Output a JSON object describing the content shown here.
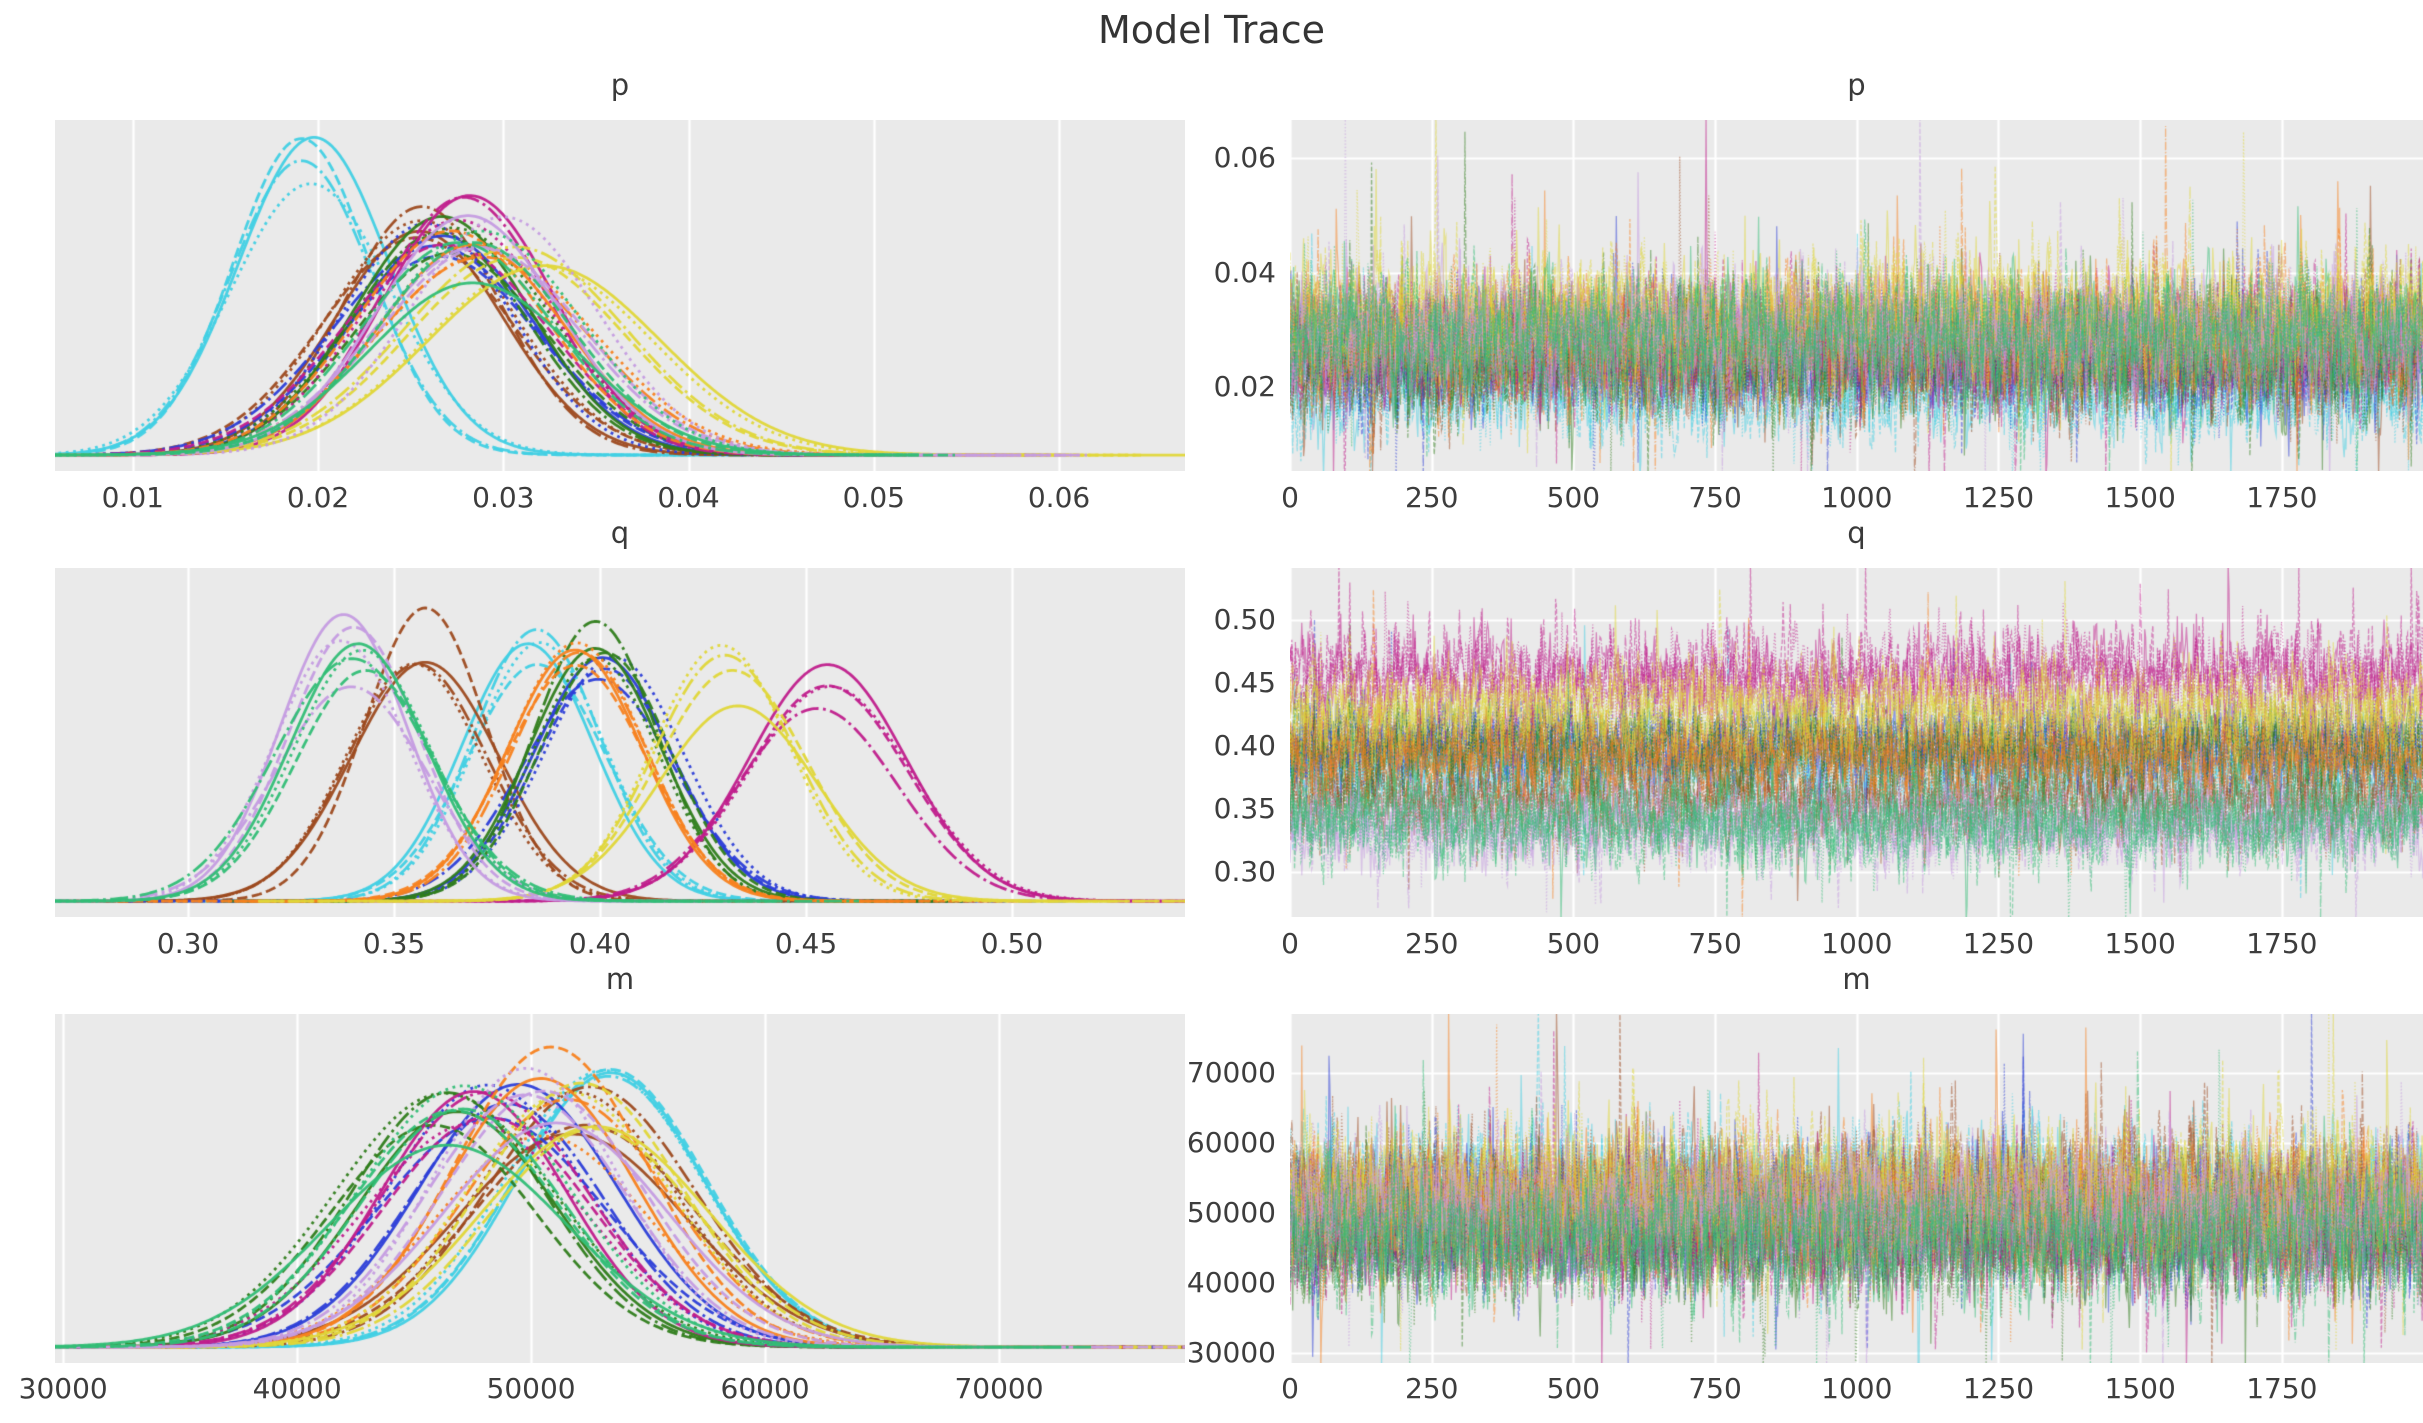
{
  "title": "Model Trace",
  "style": {
    "page_bg": "#ffffff",
    "plot_bg": "#eaeaea",
    "grid_color": "#ffffff",
    "text_color": "#3d3d3d",
    "title_color": "#343434"
  },
  "chain_palette": {
    "cyan": "#41d0e4",
    "brown": "#9d4a1f",
    "blue": "#2c3ed8",
    "darkgreen": "#2f7d1b",
    "magenta": "#c01d8c",
    "orange": "#f8821f",
    "yellow": "#e0d739",
    "plum": "#c59ce2",
    "seagreen": "#32be76"
  },
  "linestyles": [
    "solid",
    "dashed",
    "dashdot",
    "dotted"
  ],
  "chains_per_color": 4,
  "n_draws": 2000,
  "chart_data": [
    {
      "id": "p-posterior",
      "type": "area",
      "kind": "kde",
      "title": "p",
      "grid": true,
      "x_range": [
        0.0058,
        0.0668
      ],
      "x_ticks": [
        0.01,
        0.02,
        0.03,
        0.04,
        0.05,
        0.06
      ],
      "x_tick_labels": [
        "0.01",
        "0.02",
        "0.03",
        "0.04",
        "0.05",
        "0.06"
      ],
      "max_peak_fraction": 0.905,
      "series": [
        {
          "chain_color": "cyan",
          "mean": 0.0197,
          "sd": 0.004
        },
        {
          "chain_color": "brown",
          "mean": 0.0252,
          "sd": 0.0046
        },
        {
          "chain_color": "blue",
          "mean": 0.0262,
          "sd": 0.0049
        },
        {
          "chain_color": "darkgreen",
          "mean": 0.0268,
          "sd": 0.005
        },
        {
          "chain_color": "magenta",
          "mean": 0.028,
          "sd": 0.0051
        },
        {
          "chain_color": "orange",
          "mean": 0.0285,
          "sd": 0.0053
        },
        {
          "chain_color": "yellow",
          "mean": 0.032,
          "sd": 0.0058
        },
        {
          "chain_color": "plum",
          "mean": 0.0289,
          "sd": 0.0052
        },
        {
          "chain_color": "seagreen",
          "mean": 0.0283,
          "sd": 0.0051
        }
      ]
    },
    {
      "id": "p-trace",
      "type": "line",
      "kind": "trace",
      "title": "p",
      "grid": true,
      "x_range": [
        0,
        1999
      ],
      "x_ticks": [
        0,
        250,
        500,
        750,
        1000,
        1250,
        1500,
        1750
      ],
      "x_tick_labels": [
        "0",
        "250",
        "500",
        "750",
        "1000",
        "1250",
        "1500",
        "1750"
      ],
      "y_range": [
        0.0054,
        0.0666
      ],
      "y_ticks": [
        0.02,
        0.04,
        0.06
      ],
      "y_tick_labels": [
        "0.02",
        "0.04",
        "0.06"
      ],
      "series": [
        {
          "chain_color": "cyan",
          "mean": 0.0197,
          "sd": 0.004
        },
        {
          "chain_color": "brown",
          "mean": 0.0252,
          "sd": 0.0046
        },
        {
          "chain_color": "blue",
          "mean": 0.0262,
          "sd": 0.0049
        },
        {
          "chain_color": "darkgreen",
          "mean": 0.0268,
          "sd": 0.005
        },
        {
          "chain_color": "magenta",
          "mean": 0.028,
          "sd": 0.0051
        },
        {
          "chain_color": "orange",
          "mean": 0.0285,
          "sd": 0.0053
        },
        {
          "chain_color": "yellow",
          "mean": 0.032,
          "sd": 0.0058
        },
        {
          "chain_color": "plum",
          "mean": 0.0289,
          "sd": 0.0052
        },
        {
          "chain_color": "seagreen",
          "mean": 0.0283,
          "sd": 0.0051
        }
      ]
    },
    {
      "id": "q-posterior",
      "type": "area",
      "kind": "kde",
      "title": "q",
      "grid": true,
      "x_range": [
        0.2677,
        0.542
      ],
      "x_ticks": [
        0.3,
        0.35,
        0.4,
        0.45,
        0.5
      ],
      "x_tick_labels": [
        "0.30",
        "0.35",
        "0.40",
        "0.45",
        "0.50"
      ],
      "max_peak_fraction": 0.84,
      "series": [
        {
          "chain_color": "cyan",
          "mean": 0.384,
          "sd": 0.0165
        },
        {
          "chain_color": "brown",
          "mean": 0.356,
          "sd": 0.016
        },
        {
          "chain_color": "blue",
          "mean": 0.402,
          "sd": 0.0165
        },
        {
          "chain_color": "darkgreen",
          "mean": 0.399,
          "sd": 0.016
        },
        {
          "chain_color": "magenta",
          "mean": 0.455,
          "sd": 0.0185
        },
        {
          "chain_color": "orange",
          "mean": 0.394,
          "sd": 0.0165
        },
        {
          "chain_color": "yellow",
          "mean": 0.43,
          "sd": 0.0175
        },
        {
          "chain_color": "plum",
          "mean": 0.338,
          "sd": 0.0165
        },
        {
          "chain_color": "seagreen",
          "mean": 0.341,
          "sd": 0.0165
        }
      ]
    },
    {
      "id": "q-trace",
      "type": "line",
      "kind": "trace",
      "title": "q",
      "grid": true,
      "x_range": [
        0,
        1999
      ],
      "x_ticks": [
        0,
        250,
        500,
        750,
        1000,
        1250,
        1500,
        1750
      ],
      "x_tick_labels": [
        "0",
        "250",
        "500",
        "750",
        "1000",
        "1250",
        "1500",
        "1750"
      ],
      "y_range": [
        0.2643,
        0.5413
      ],
      "y_ticks": [
        0.3,
        0.35,
        0.4,
        0.45,
        0.5
      ],
      "y_tick_labels": [
        "0.30",
        "0.35",
        "0.40",
        "0.45",
        "0.50"
      ],
      "series": [
        {
          "chain_color": "cyan",
          "mean": 0.384,
          "sd": 0.0165
        },
        {
          "chain_color": "brown",
          "mean": 0.356,
          "sd": 0.016
        },
        {
          "chain_color": "blue",
          "mean": 0.402,
          "sd": 0.0165
        },
        {
          "chain_color": "darkgreen",
          "mean": 0.399,
          "sd": 0.016
        },
        {
          "chain_color": "magenta",
          "mean": 0.455,
          "sd": 0.0185
        },
        {
          "chain_color": "orange",
          "mean": 0.394,
          "sd": 0.0165
        },
        {
          "chain_color": "yellow",
          "mean": 0.43,
          "sd": 0.0175
        },
        {
          "chain_color": "plum",
          "mean": 0.338,
          "sd": 0.0165
        },
        {
          "chain_color": "seagreen",
          "mean": 0.341,
          "sd": 0.0165
        }
      ]
    },
    {
      "id": "m-posterior",
      "type": "area",
      "kind": "kde",
      "title": "m",
      "grid": true,
      "x_range": [
        29650,
        77950
      ],
      "x_ticks": [
        30000,
        40000,
        50000,
        60000,
        70000
      ],
      "x_tick_labels": [
        "30000",
        "40000",
        "50000",
        "60000",
        "70000"
      ],
      "max_peak_fraction": 0.86,
      "series": [
        {
          "chain_color": "cyan",
          "mean": 53000,
          "sd": 4300
        },
        {
          "chain_color": "brown",
          "mean": 52000,
          "sd": 4400
        },
        {
          "chain_color": "blue",
          "mean": 48800,
          "sd": 4300
        },
        {
          "chain_color": "darkgreen",
          "mean": 46300,
          "sd": 4300
        },
        {
          "chain_color": "magenta",
          "mean": 47800,
          "sd": 4300
        },
        {
          "chain_color": "orange",
          "mean": 51000,
          "sd": 4400
        },
        {
          "chain_color": "yellow",
          "mean": 52400,
          "sd": 4600
        },
        {
          "chain_color": "plum",
          "mean": 50300,
          "sd": 4400
        },
        {
          "chain_color": "seagreen",
          "mean": 46900,
          "sd": 4300
        }
      ]
    },
    {
      "id": "m-trace",
      "type": "line",
      "kind": "trace",
      "title": "m",
      "grid": true,
      "x_range": [
        0,
        1999
      ],
      "x_ticks": [
        0,
        250,
        500,
        750,
        1000,
        1250,
        1500,
        1750
      ],
      "x_tick_labels": [
        "0",
        "250",
        "500",
        "750",
        "1000",
        "1250",
        "1500",
        "1750"
      ],
      "y_range": [
        28570,
        78430
      ],
      "y_ticks": [
        30000,
        40000,
        50000,
        60000,
        70000
      ],
      "y_tick_labels": [
        "30000",
        "40000",
        "50000",
        "60000",
        "70000"
      ],
      "series": [
        {
          "chain_color": "cyan",
          "mean": 53000,
          "sd": 4300
        },
        {
          "chain_color": "brown",
          "mean": 52000,
          "sd": 4400
        },
        {
          "chain_color": "blue",
          "mean": 48800,
          "sd": 4300
        },
        {
          "chain_color": "darkgreen",
          "mean": 46300,
          "sd": 4300
        },
        {
          "chain_color": "magenta",
          "mean": 47800,
          "sd": 4300
        },
        {
          "chain_color": "orange",
          "mean": 51000,
          "sd": 4400
        },
        {
          "chain_color": "yellow",
          "mean": 52400,
          "sd": 4600
        },
        {
          "chain_color": "plum",
          "mean": 50300,
          "sd": 4400
        },
        {
          "chain_color": "seagreen",
          "mean": 46900,
          "sd": 4300
        }
      ]
    }
  ]
}
